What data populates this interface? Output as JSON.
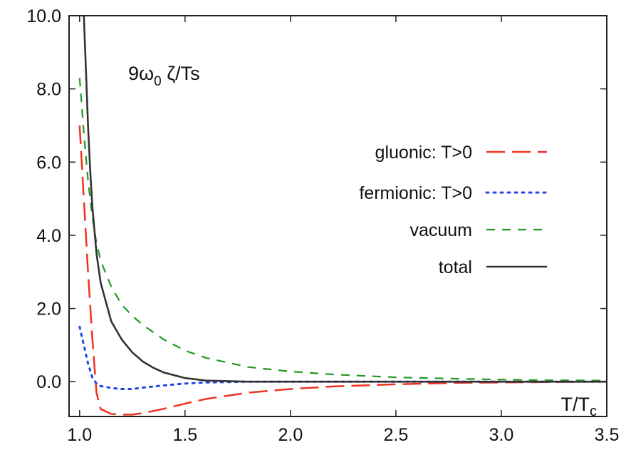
{
  "chart_data": {
    "type": "line",
    "xlabel": "T/T",
    "xlabel_sub": "c",
    "annotation": {
      "prefix": "9ω",
      "sub": "0",
      "suffix": " ζ/Ts"
    },
    "xlim": [
      0.95,
      3.5
    ],
    "ylim": [
      -0.95,
      10.0
    ],
    "xticks": [
      1.0,
      1.5,
      2.0,
      2.5,
      3.0,
      3.5
    ],
    "yticks": [
      0.0,
      2.0,
      4.0,
      6.0,
      8.0,
      10.0
    ],
    "legend_position": "right",
    "series": [
      {
        "name": "gluonic: T>0",
        "color": "#ee3322",
        "style": "long-dash",
        "x": [
          1.0,
          1.02,
          1.04,
          1.06,
          1.08,
          1.1,
          1.15,
          1.2,
          1.25,
          1.3,
          1.4,
          1.5,
          1.6,
          1.8,
          2.0,
          2.2,
          2.5,
          2.8,
          3.0,
          3.2,
          3.5
        ],
        "y": [
          7.0,
          5.0,
          3.0,
          1.2,
          -0.3,
          -0.75,
          -0.88,
          -0.9,
          -0.9,
          -0.86,
          -0.74,
          -0.6,
          -0.47,
          -0.3,
          -0.2,
          -0.13,
          -0.07,
          -0.03,
          -0.02,
          -0.01,
          0.0
        ]
      },
      {
        "name": "fermionic: T>0",
        "color": "#2244ee",
        "style": "dotted",
        "x": [
          1.0,
          1.02,
          1.04,
          1.06,
          1.08,
          1.1,
          1.15,
          1.2,
          1.25,
          1.3,
          1.4,
          1.5,
          1.6,
          1.8,
          2.0,
          2.5,
          3.0,
          3.5
        ],
        "y": [
          1.5,
          1.0,
          0.5,
          0.12,
          -0.05,
          -0.12,
          -0.17,
          -0.2,
          -0.2,
          -0.16,
          -0.1,
          -0.05,
          -0.02,
          0.0,
          0.0,
          0.0,
          0.0,
          0.0
        ]
      },
      {
        "name": "vacuum",
        "color": "#229922",
        "style": "short-dash",
        "x": [
          1.0,
          1.02,
          1.04,
          1.06,
          1.08,
          1.1,
          1.15,
          1.2,
          1.25,
          1.3,
          1.4,
          1.5,
          1.6,
          1.8,
          2.0,
          2.2,
          2.5,
          2.8,
          3.0,
          3.2,
          3.5
        ],
        "y": [
          8.3,
          6.8,
          5.5,
          4.5,
          3.8,
          3.3,
          2.6,
          2.1,
          1.8,
          1.55,
          1.15,
          0.85,
          0.65,
          0.4,
          0.28,
          0.2,
          0.12,
          0.08,
          0.06,
          0.04,
          0.03
        ]
      },
      {
        "name": "total",
        "color": "#333333",
        "style": "solid",
        "x": [
          1.02,
          1.03,
          1.04,
          1.05,
          1.06,
          1.08,
          1.1,
          1.15,
          1.2,
          1.25,
          1.3,
          1.35,
          1.4,
          1.5,
          1.6,
          1.8,
          2.0,
          2.5,
          3.0,
          3.5
        ],
        "y": [
          10.0,
          8.5,
          7.0,
          5.8,
          4.8,
          3.5,
          2.7,
          1.65,
          1.15,
          0.8,
          0.55,
          0.38,
          0.25,
          0.1,
          0.03,
          0.0,
          0.0,
          0.0,
          0.0,
          0.0
        ]
      }
    ]
  }
}
